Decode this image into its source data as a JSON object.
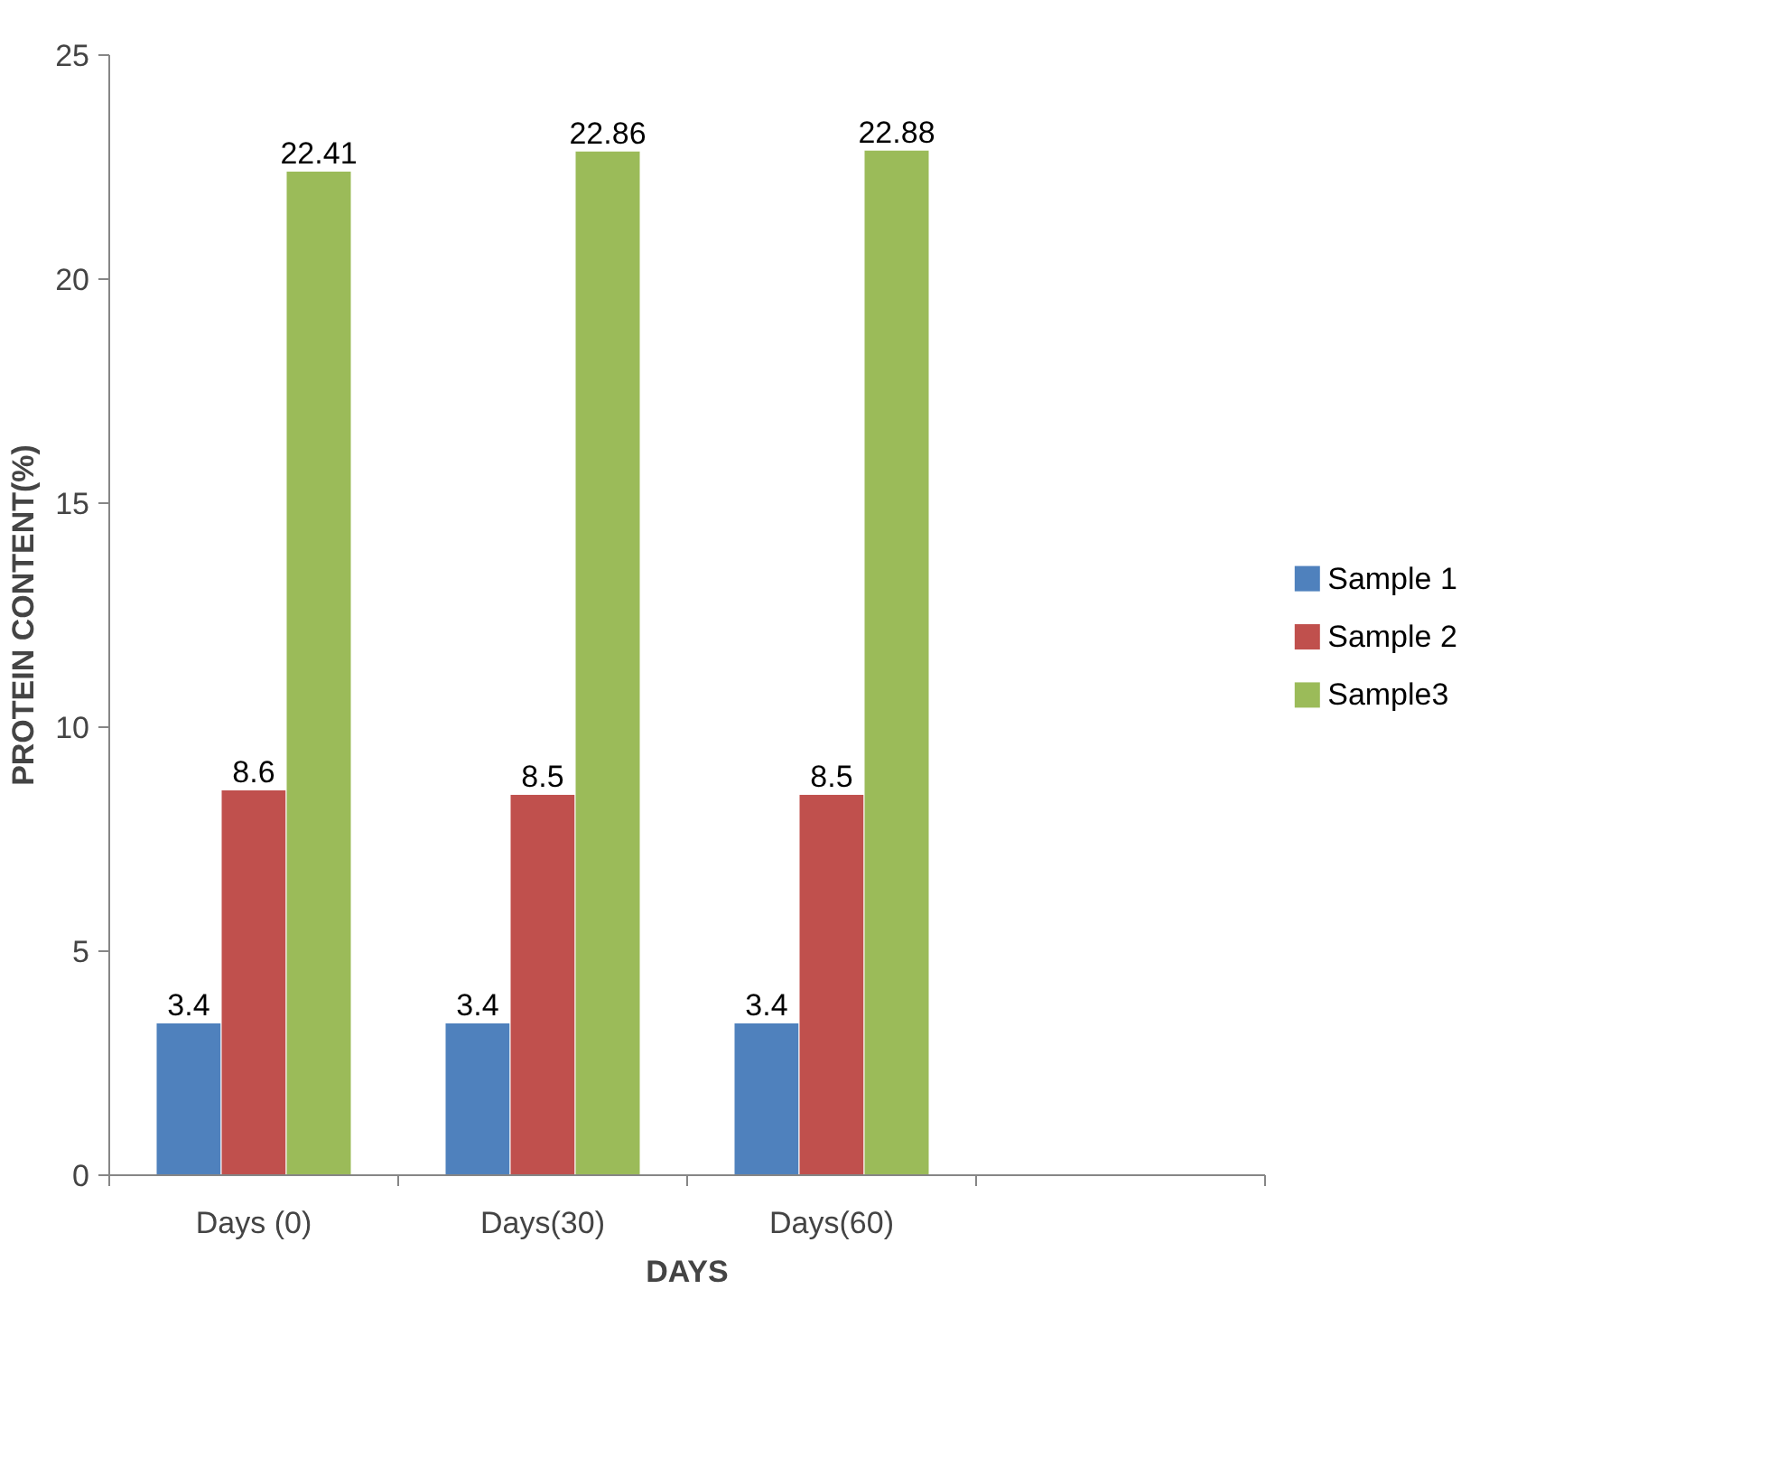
{
  "chart_data": {
    "type": "bar",
    "xlabel": "DAYS",
    "ylabel": "PROTEIN CONTENT(%)",
    "categories": [
      "Days (0)",
      "Days(30)",
      "Days(60)",
      null
    ],
    "series": [
      {
        "name": "Sample 1",
        "color": "#4f81bd",
        "values": [
          3.4,
          3.4,
          3.4,
          null
        ]
      },
      {
        "name": "Sample 2",
        "color": "#c0504d",
        "values": [
          8.6,
          8.5,
          8.5,
          null
        ]
      },
      {
        "name": "Sample3",
        "color": "#9bbb59",
        "values": [
          22.41,
          22.86,
          22.88,
          null
        ]
      }
    ],
    "ylim": [
      0,
      25
    ],
    "yticks": [
      0,
      5,
      10,
      15,
      20,
      25
    ],
    "data_labels": true,
    "grid": false,
    "legend": "right"
  }
}
